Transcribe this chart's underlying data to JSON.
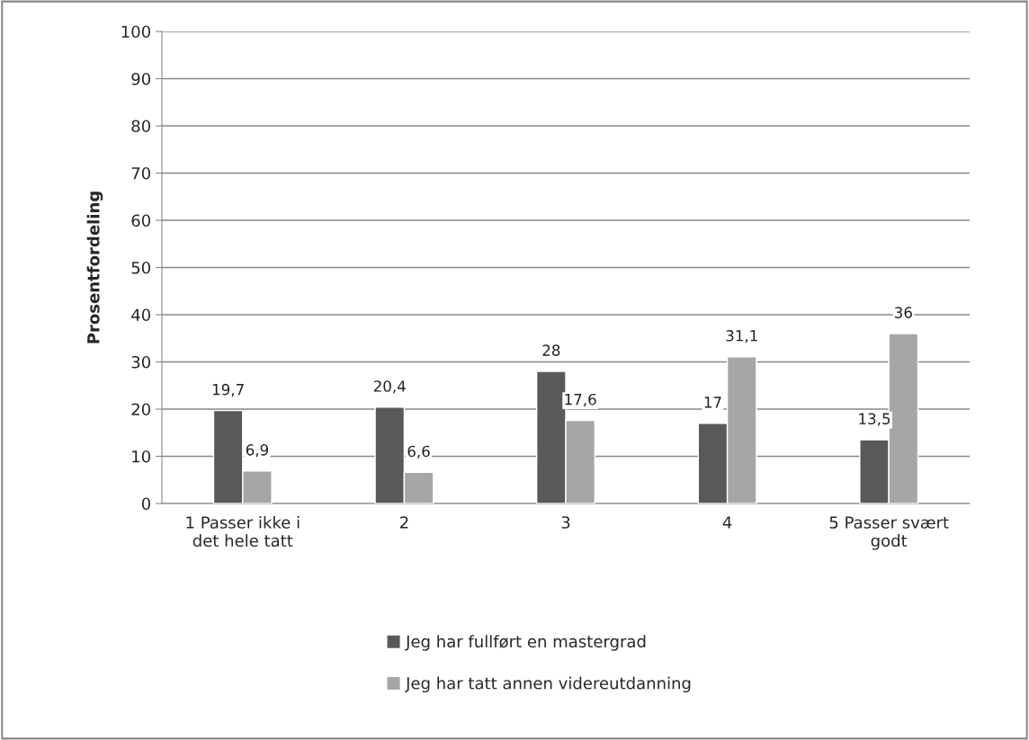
{
  "chart_data": {
    "type": "bar",
    "ylabel": "Prosentfordeling",
    "categories": [
      "1 Passer ikke i\ndet hele tatt",
      "2",
      "3",
      "4",
      "5 Passer svært\ngodt"
    ],
    "series": [
      {
        "name": "Jeg har fullført en mastergrad",
        "color": "#595959",
        "values": [
          19.7,
          20.4,
          28,
          17,
          13.5
        ],
        "value_labels": [
          "19,7",
          "20,4",
          "28",
          "17",
          "13,5"
        ]
      },
      {
        "name": "Jeg har tatt annen videreutdanning",
        "color": "#a6a6a6",
        "values": [
          6.9,
          6.6,
          17.6,
          31.1,
          36
        ],
        "value_labels": [
          "6,9",
          "6,6",
          "17,6",
          "31,1",
          "36"
        ]
      }
    ],
    "ylim": [
      0,
      100
    ],
    "yticks": [
      0,
      10,
      20,
      30,
      40,
      50,
      60,
      70,
      80,
      90,
      100
    ],
    "grid": "y",
    "legend": "bottom"
  }
}
